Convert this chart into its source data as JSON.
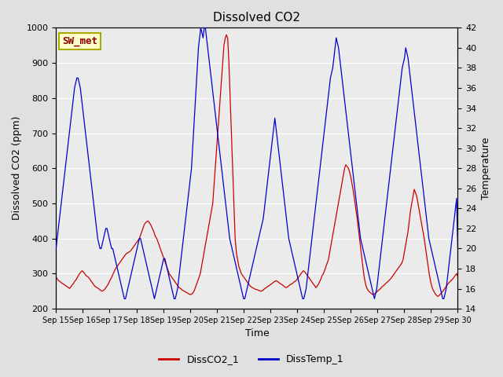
{
  "title": "Dissolved CO2",
  "xlabel": "Time",
  "ylabel_left": "Dissolved CO2 (ppm)",
  "ylabel_right": "Temperature",
  "annotation_text": "SW_met",
  "annotation_bg": "#ffffcc",
  "annotation_border": "#aaaa00",
  "annotation_text_color": "#8b0000",
  "left_ylim": [
    200,
    1000
  ],
  "right_ylim": [
    14,
    42
  ],
  "left_yticks": [
    200,
    300,
    400,
    500,
    600,
    700,
    800,
    900,
    1000
  ],
  "right_yticks": [
    14,
    16,
    18,
    20,
    22,
    24,
    26,
    28,
    30,
    32,
    34,
    36,
    38,
    40,
    42
  ],
  "xtick_labels": [
    "Sep 15",
    "Sep 16",
    "Sep 17",
    "Sep 18",
    "Sep 19",
    "Sep 20",
    "Sep 21",
    "Sep 22",
    "Sep 23",
    "Sep 24",
    "Sep 25",
    "Sep 26",
    "Sep 27",
    "Sep 28",
    "Sep 29",
    "Sep 30"
  ],
  "bg_color": "#e0e0e0",
  "plot_bg_color": "#ebebeb",
  "line_color_co2": "#cc0000",
  "line_color_temp": "#0000cc",
  "legend_label_co2": "DissCO2_1",
  "legend_label_temp": "DissTemp_1",
  "grid_color": "#ffffff",
  "co2_y": [
    290,
    285,
    280,
    278,
    275,
    272,
    270,
    268,
    265,
    263,
    260,
    258,
    263,
    268,
    272,
    278,
    282,
    288,
    295,
    300,
    305,
    308,
    305,
    300,
    295,
    292,
    290,
    285,
    280,
    275,
    270,
    265,
    262,
    260,
    258,
    255,
    252,
    250,
    252,
    255,
    260,
    265,
    270,
    278,
    285,
    292,
    300,
    308,
    315,
    320,
    325,
    330,
    335,
    340,
    345,
    350,
    355,
    358,
    360,
    362,
    365,
    370,
    375,
    380,
    385,
    390,
    395,
    400,
    410,
    420,
    430,
    440,
    445,
    448,
    450,
    445,
    440,
    432,
    425,
    415,
    405,
    400,
    390,
    380,
    370,
    360,
    350,
    340,
    330,
    320,
    310,
    300,
    295,
    290,
    285,
    280,
    275,
    270,
    265,
    260,
    258,
    255,
    252,
    250,
    248,
    246,
    244,
    242,
    240,
    242,
    245,
    250,
    260,
    270,
    280,
    290,
    300,
    320,
    340,
    360,
    380,
    400,
    420,
    440,
    460,
    480,
    500,
    550,
    600,
    650,
    700,
    750,
    800,
    850,
    900,
    950,
    970,
    980,
    970,
    900,
    800,
    700,
    600,
    500,
    400,
    360,
    340,
    320,
    310,
    300,
    295,
    290,
    285,
    280,
    275,
    270,
    265,
    262,
    260,
    258,
    256,
    255,
    254,
    252,
    251,
    250,
    252,
    255,
    258,
    260,
    263,
    265,
    268,
    270,
    273,
    276,
    278,
    280,
    278,
    275,
    272,
    270,
    268,
    265,
    262,
    260,
    262,
    265,
    268,
    270,
    272,
    275,
    278,
    280,
    285,
    290,
    295,
    300,
    305,
    308,
    305,
    300,
    295,
    290,
    285,
    280,
    275,
    270,
    265,
    260,
    265,
    270,
    278,
    285,
    295,
    300,
    310,
    320,
    330,
    340,
    360,
    380,
    400,
    420,
    440,
    460,
    480,
    500,
    520,
    540,
    560,
    580,
    600,
    610,
    605,
    600,
    590,
    575,
    555,
    535,
    510,
    485,
    460,
    430,
    400,
    370,
    340,
    310,
    285,
    268,
    258,
    252,
    248,
    245,
    242,
    240,
    242,
    245,
    248,
    252,
    255,
    258,
    262,
    265,
    268,
    272,
    275,
    278,
    282,
    285,
    290,
    295,
    300,
    305,
    310,
    315,
    320,
    325,
    330,
    340,
    360,
    380,
    400,
    420,
    450,
    480,
    500,
    520,
    540,
    530,
    520,
    500,
    480,
    460,
    440,
    420,
    400,
    375,
    350,
    325,
    300,
    280,
    265,
    255,
    248,
    242,
    238,
    235,
    238,
    242,
    246,
    250,
    255,
    260,
    265,
    270,
    275,
    278,
    282,
    285,
    290,
    295,
    300,
    292
  ],
  "temp_y": [
    20,
    21,
    22,
    23,
    24,
    25,
    26,
    27,
    28,
    29,
    30,
    31,
    32,
    33,
    34,
    35,
    36,
    36.5,
    37,
    37,
    36.5,
    36,
    35,
    34,
    33,
    32,
    31,
    30,
    29,
    28,
    27,
    26,
    25,
    24,
    23,
    22,
    21,
    20.5,
    20,
    20,
    20.5,
    21,
    21.5,
    22,
    22,
    21.5,
    21,
    20.5,
    20,
    20,
    19.5,
    19,
    18.5,
    18,
    17.5,
    17,
    16.5,
    16,
    15.5,
    15,
    15,
    15.5,
    16,
    16.5,
    17,
    17.5,
    18,
    18.5,
    19,
    19.5,
    20,
    20.5,
    21,
    21,
    20.5,
    20,
    19.5,
    19,
    18.5,
    18,
    17.5,
    17,
    16.5,
    16,
    15.5,
    15,
    15.5,
    16,
    16.5,
    17,
    17.5,
    18,
    18.5,
    19,
    19,
    18.5,
    18,
    17.5,
    17,
    16.5,
    16,
    15.5,
    15,
    15,
    15.5,
    16,
    17,
    18,
    19,
    20,
    21,
    22,
    23,
    24,
    25,
    26,
    27,
    28,
    30,
    32,
    34,
    36,
    38,
    40,
    41,
    42,
    41.5,
    41,
    42,
    42,
    41,
    40,
    39,
    38,
    37,
    36,
    35,
    34,
    33,
    32,
    31,
    30,
    29,
    28,
    27,
    26,
    25,
    24,
    23,
    22,
    21,
    20.5,
    20,
    19.5,
    19,
    18.5,
    18,
    17.5,
    17,
    16.5,
    16,
    15.5,
    15,
    15,
    15.5,
    16,
    16.5,
    17,
    17.5,
    18,
    18.5,
    19,
    19.5,
    20,
    20.5,
    21,
    21.5,
    22,
    22.5,
    23,
    24,
    25,
    26,
    27,
    28,
    29,
    30,
    31,
    32,
    33,
    32,
    31,
    30,
    29,
    28,
    27,
    26,
    25,
    24,
    23,
    22,
    21,
    20.5,
    20,
    19.5,
    19,
    18.5,
    18,
    17.5,
    17,
    16.5,
    16,
    15.5,
    15,
    15,
    15.5,
    16,
    17,
    18,
    19,
    20,
    21,
    22,
    23,
    24,
    25,
    26,
    27,
    28,
    29,
    30,
    31,
    32,
    33,
    34,
    35,
    36,
    37,
    37.5,
    38,
    39,
    40,
    41,
    40.5,
    40,
    39,
    38,
    37,
    36,
    35,
    34,
    33,
    32,
    31,
    30,
    29,
    28,
    27,
    26,
    25,
    24,
    23,
    22,
    21,
    20.5,
    20,
    19.5,
    19,
    18.5,
    18,
    17.5,
    17,
    16.5,
    16,
    15.5,
    15,
    15.5,
    16,
    17,
    18,
    19,
    20,
    21,
    22,
    23,
    24,
    25,
    26,
    27,
    28,
    29,
    30,
    31,
    32,
    33,
    34,
    35,
    36,
    37,
    38,
    38.5,
    39,
    40,
    39.5,
    39,
    38,
    37,
    36,
    35,
    34,
    33,
    32,
    31,
    30,
    29,
    28,
    27,
    26,
    25,
    24,
    23,
    22,
    21,
    20.5,
    20,
    19.5,
    19,
    18.5,
    18,
    17.5,
    17,
    16.5,
    16,
    15.5,
    15,
    15,
    15.5,
    16,
    17,
    18,
    19,
    20,
    21,
    22,
    23,
    24,
    25,
    20
  ]
}
